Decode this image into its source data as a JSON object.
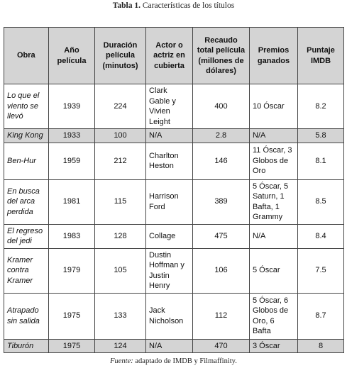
{
  "title": {
    "label": "Tabla 1.",
    "text": "Características de los títulos"
  },
  "table": {
    "header": [
      "Obra",
      "Año película",
      "Duración película (minutos)",
      "Actor o actriz en cubierta",
      "Recaudo total película (millones de dólares)",
      "Premios ganados",
      "Puntaje IMDB"
    ],
    "rows": [
      [
        "Lo que el viento se llevó",
        "1939",
        "224",
        "Clark Gable y Vivien Leight",
        "400",
        "10 Óscar",
        "8.2"
      ],
      [
        "King Kong",
        "1933",
        "100",
        "N/A",
        "2.8",
        "N/A",
        "5.8"
      ],
      [
        "Ben-Hur",
        "1959",
        "212",
        "Charlton Heston",
        "146",
        "11 Óscar, 3 Globos de Oro",
        "8.1"
      ],
      [
        "En busca del arca perdida",
        "1981",
        "115",
        "Harrison Ford",
        "389",
        "5 Óscar, 5 Saturn, 1 Bafta, 1 Grammy",
        "8.5"
      ],
      [
        "El regreso del jedi",
        "1983",
        "128",
        "Collage",
        "475",
        "N/A",
        "8.4"
      ],
      [
        "Kramer contra Kramer",
        "1979",
        "105",
        "Dustin Hoffman y Justin Henry",
        "106",
        "5 Óscar",
        "7.5"
      ],
      [
        "Atrapado sin salida",
        "1975",
        "133",
        "Jack Nicholson",
        "112",
        "5 Óscar, 6 Globos de Oro, 6 Bafta",
        "8.7"
      ],
      [
        "Tiburón",
        "1975",
        "124",
        "N/A",
        "470",
        "3 Óscar",
        "8"
      ]
    ]
  },
  "source": {
    "label": "Fuente:",
    "text": "adaptado de IMDB y Filmaffinity."
  }
}
